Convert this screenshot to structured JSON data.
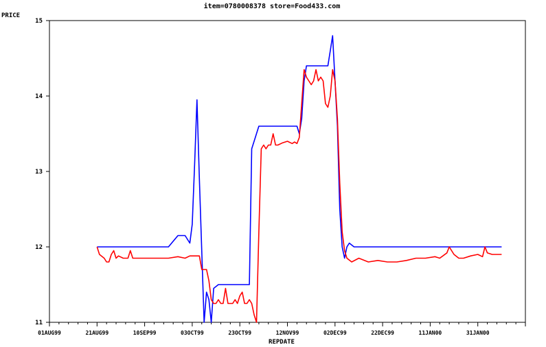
{
  "chart_data": {
    "type": "line",
    "title": "item=0780008378 store=Food433.com",
    "ylabel": "PRICE",
    "xlabel": "REPDATE",
    "x_ticks": [
      "01AUG99",
      "21AUG99",
      "10SEP99",
      "03OCT99",
      "23OCT99",
      "12NOV99",
      "02DEC99",
      "22DEC99",
      "11JAN00",
      "31JAN00"
    ],
    "y_ticks": [
      "11",
      "12",
      "13",
      "14",
      "15"
    ],
    "ylim": [
      11,
      15
    ],
    "grid": false,
    "series": [
      {
        "color": "#0000ff",
        "points": [
          [
            20,
            12.0
          ],
          [
            26,
            12.0
          ],
          [
            32,
            12.0
          ],
          [
            38,
            12.0
          ],
          [
            44,
            12.0
          ],
          [
            50,
            12.0
          ],
          [
            54,
            12.15
          ],
          [
            57,
            12.15
          ],
          [
            59,
            12.05
          ],
          [
            60,
            12.3
          ],
          [
            61,
            13.1
          ],
          [
            62,
            13.95
          ],
          [
            63,
            12.9
          ],
          [
            65,
            11.0
          ],
          [
            66,
            11.4
          ],
          [
            67,
            11.3
          ],
          [
            68,
            11.0
          ],
          [
            69,
            11.45
          ],
          [
            71,
            11.5
          ],
          [
            74,
            11.5
          ],
          [
            80,
            11.5
          ],
          [
            84,
            11.5
          ],
          [
            85,
            13.3
          ],
          [
            86,
            13.4
          ],
          [
            88,
            13.6
          ],
          [
            96,
            13.6
          ],
          [
            102,
            13.6
          ],
          [
            104,
            13.6
          ],
          [
            105,
            13.5
          ],
          [
            106,
            13.7
          ],
          [
            107,
            14.2
          ],
          [
            108,
            14.4
          ],
          [
            112,
            14.4
          ],
          [
            117,
            14.4
          ],
          [
            118,
            14.6
          ],
          [
            119,
            14.8
          ],
          [
            121,
            13.6
          ],
          [
            122,
            12.5
          ],
          [
            123,
            12.0
          ],
          [
            124,
            11.85
          ],
          [
            125,
            12.0
          ],
          [
            126,
            12.05
          ],
          [
            128,
            12.0
          ],
          [
            140,
            12.0
          ],
          [
            160,
            12.0
          ],
          [
            180,
            12.0
          ],
          [
            190,
            12.0
          ]
        ]
      },
      {
        "color": "#ff0000",
        "points": [
          [
            20,
            12.0
          ],
          [
            21,
            11.9
          ],
          [
            23,
            11.85
          ],
          [
            24,
            11.8
          ],
          [
            25,
            11.8
          ],
          [
            26,
            11.9
          ],
          [
            27,
            11.95
          ],
          [
            28,
            11.85
          ],
          [
            29,
            11.88
          ],
          [
            31,
            11.85
          ],
          [
            33,
            11.85
          ],
          [
            34,
            11.95
          ],
          [
            35,
            11.85
          ],
          [
            38,
            11.85
          ],
          [
            44,
            11.85
          ],
          [
            50,
            11.85
          ],
          [
            54,
            11.87
          ],
          [
            57,
            11.85
          ],
          [
            59,
            11.88
          ],
          [
            61,
            11.88
          ],
          [
            63,
            11.88
          ],
          [
            64,
            11.7
          ],
          [
            66,
            11.7
          ],
          [
            67,
            11.55
          ],
          [
            68,
            11.3
          ],
          [
            69,
            11.25
          ],
          [
            70,
            11.25
          ],
          [
            71,
            11.3
          ],
          [
            72,
            11.25
          ],
          [
            73,
            11.25
          ],
          [
            74,
            11.45
          ],
          [
            75,
            11.25
          ],
          [
            77,
            11.25
          ],
          [
            78,
            11.3
          ],
          [
            79,
            11.25
          ],
          [
            80,
            11.35
          ],
          [
            81,
            11.4
          ],
          [
            82,
            11.25
          ],
          [
            83,
            11.25
          ],
          [
            84,
            11.3
          ],
          [
            85,
            11.25
          ],
          [
            86,
            11.1
          ],
          [
            87,
            11.0
          ],
          [
            88,
            12.2
          ],
          [
            89,
            13.3
          ],
          [
            90,
            13.35
          ],
          [
            91,
            13.3
          ],
          [
            92,
            13.35
          ],
          [
            93,
            13.35
          ],
          [
            94,
            13.5
          ],
          [
            95,
            13.35
          ],
          [
            96,
            13.35
          ],
          [
            98,
            13.38
          ],
          [
            100,
            13.4
          ],
          [
            102,
            13.37
          ],
          [
            103,
            13.39
          ],
          [
            104,
            13.37
          ],
          [
            105,
            13.45
          ],
          [
            106,
            13.9
          ],
          [
            107,
            14.35
          ],
          [
            108,
            14.25
          ],
          [
            109,
            14.2
          ],
          [
            110,
            14.15
          ],
          [
            111,
            14.2
          ],
          [
            112,
            14.35
          ],
          [
            113,
            14.2
          ],
          [
            114,
            14.25
          ],
          [
            115,
            14.2
          ],
          [
            116,
            13.9
          ],
          [
            117,
            13.85
          ],
          [
            118,
            14.0
          ],
          [
            119,
            14.35
          ],
          [
            120,
            14.2
          ],
          [
            121,
            13.7
          ],
          [
            122,
            12.85
          ],
          [
            123,
            12.2
          ],
          [
            124,
            11.95
          ],
          [
            125,
            11.85
          ],
          [
            127,
            11.8
          ],
          [
            130,
            11.85
          ],
          [
            134,
            11.8
          ],
          [
            138,
            11.82
          ],
          [
            142,
            11.8
          ],
          [
            146,
            11.8
          ],
          [
            150,
            11.82
          ],
          [
            154,
            11.85
          ],
          [
            158,
            11.85
          ],
          [
            162,
            11.87
          ],
          [
            164,
            11.85
          ],
          [
            167,
            11.92
          ],
          [
            168,
            12.0
          ],
          [
            170,
            11.9
          ],
          [
            172,
            11.85
          ],
          [
            174,
            11.85
          ],
          [
            177,
            11.88
          ],
          [
            180,
            11.9
          ],
          [
            182,
            11.87
          ],
          [
            183,
            12.0
          ],
          [
            184,
            11.92
          ],
          [
            186,
            11.9
          ],
          [
            188,
            11.9
          ],
          [
            190,
            11.9
          ]
        ]
      }
    ],
    "xlim": [
      0,
      200
    ]
  }
}
